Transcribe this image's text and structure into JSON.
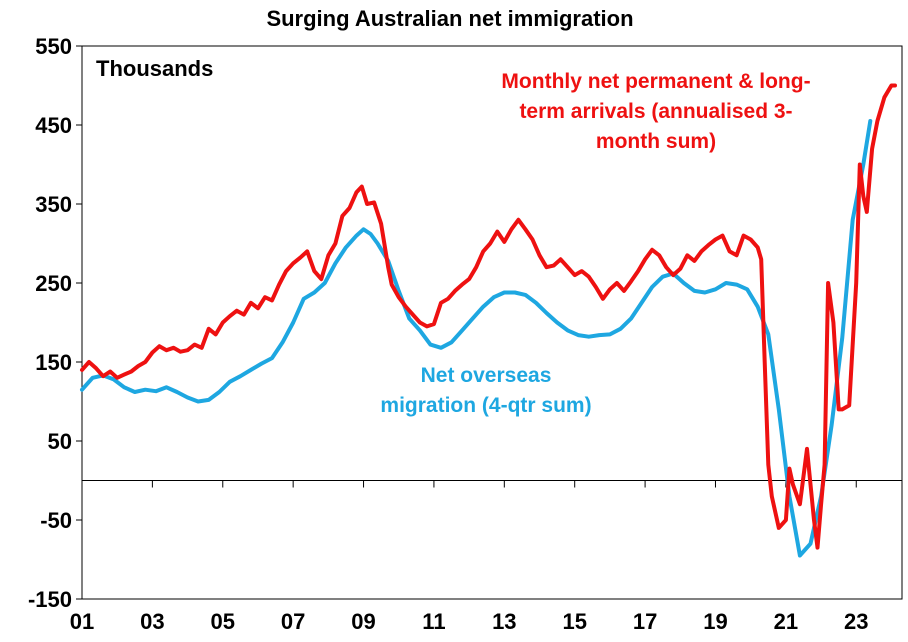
{
  "chart_data": {
    "type": "line",
    "title": "Surging Australian net immigration",
    "unit_label": "Thousands",
    "xlim": [
      2001,
      2024.3
    ],
    "ylim": [
      -150,
      550
    ],
    "x_ticks": [
      {
        "x": 2001,
        "label": "01"
      },
      {
        "x": 2003,
        "label": "03"
      },
      {
        "x": 2005,
        "label": "05"
      },
      {
        "x": 2007,
        "label": "07"
      },
      {
        "x": 2009,
        "label": "09"
      },
      {
        "x": 2011,
        "label": "11"
      },
      {
        "x": 2013,
        "label": "13"
      },
      {
        "x": 2015,
        "label": "15"
      },
      {
        "x": 2017,
        "label": "17"
      },
      {
        "x": 2019,
        "label": "19"
      },
      {
        "x": 2021,
        "label": "21"
      },
      {
        "x": 2023,
        "label": "23"
      }
    ],
    "y_ticks": [
      550,
      450,
      350,
      250,
      150,
      50,
      -50,
      -150
    ],
    "grid": false,
    "colors": {
      "red_series": "#ee1111",
      "blue_series": "#1ea7e1",
      "axis": "#000000"
    },
    "series": [
      {
        "name": "Monthly net permanent & long-term arrivals (annualised 3-month sum)",
        "label_lines": [
          "Monthly net permanent & long-",
          "term arrivals (annualised 3-",
          "month sum)"
        ],
        "color": "#ee1111",
        "x": [
          2001.0,
          2001.2,
          2001.4,
          2001.6,
          2001.8,
          2002.0,
          2002.2,
          2002.4,
          2002.6,
          2002.8,
          2003.0,
          2003.2,
          2003.4,
          2003.6,
          2003.8,
          2004.0,
          2004.2,
          2004.4,
          2004.6,
          2004.8,
          2005.0,
          2005.2,
          2005.4,
          2005.6,
          2005.8,
          2006.0,
          2006.2,
          2006.4,
          2006.6,
          2006.8,
          2007.0,
          2007.2,
          2007.4,
          2007.6,
          2007.8,
          2008.0,
          2008.2,
          2008.4,
          2008.6,
          2008.8,
          2008.95,
          2009.1,
          2009.3,
          2009.5,
          2009.7,
          2009.8,
          2009.9,
          2010.0,
          2010.2,
          2010.4,
          2010.6,
          2010.8,
          2011.0,
          2011.2,
          2011.4,
          2011.6,
          2011.8,
          2012.0,
          2012.2,
          2012.4,
          2012.6,
          2012.8,
          2013.0,
          2013.2,
          2013.4,
          2013.6,
          2013.8,
          2014.0,
          2014.2,
          2014.4,
          2014.6,
          2014.8,
          2015.0,
          2015.2,
          2015.4,
          2015.6,
          2015.8,
          2016.0,
          2016.2,
          2016.4,
          2016.6,
          2016.8,
          2017.0,
          2017.2,
          2017.4,
          2017.6,
          2017.8,
          2018.0,
          2018.2,
          2018.4,
          2018.6,
          2018.8,
          2019.0,
          2019.2,
          2019.4,
          2019.6,
          2019.8,
          2020.0,
          2020.2,
          2020.3,
          2020.4,
          2020.5,
          2020.6,
          2020.8,
          2021.0,
          2021.1,
          2021.2,
          2021.4,
          2021.6,
          2021.8,
          2021.9,
          2022.0,
          2022.1,
          2022.2,
          2022.35,
          2022.5,
          2022.6,
          2022.8,
          2023.0,
          2023.1,
          2023.2,
          2023.3,
          2023.45,
          2023.6,
          2023.8,
          2024.0,
          2024.1
        ],
        "y": [
          140,
          150,
          142,
          132,
          138,
          130,
          134,
          138,
          145,
          150,
          162,
          170,
          165,
          168,
          163,
          165,
          172,
          168,
          192,
          185,
          200,
          208,
          215,
          210,
          225,
          218,
          232,
          228,
          248,
          265,
          275,
          282,
          290,
          265,
          255,
          285,
          300,
          335,
          345,
          365,
          372,
          350,
          352,
          325,
          270,
          248,
          240,
          232,
          220,
          210,
          200,
          195,
          198,
          225,
          230,
          240,
          248,
          255,
          270,
          290,
          300,
          315,
          302,
          318,
          330,
          318,
          305,
          285,
          270,
          272,
          280,
          270,
          260,
          265,
          258,
          245,
          230,
          242,
          250,
          240,
          252,
          265,
          280,
          292,
          285,
          270,
          260,
          268,
          285,
          278,
          290,
          298,
          305,
          310,
          290,
          285,
          310,
          305,
          295,
          280,
          150,
          20,
          -20,
          -60,
          -50,
          15,
          -5,
          -30,
          40,
          -50,
          -85,
          -30,
          20,
          250,
          200,
          90,
          90,
          95,
          250,
          400,
          360,
          340,
          420,
          455,
          485,
          500,
          500
        ]
      },
      {
        "name": "Net overseas migration (4-qtr sum)",
        "label_lines": [
          "Net overseas",
          "migration (4-qtr sum)"
        ],
        "color": "#1ea7e1",
        "x": [
          2001.0,
          2001.3,
          2001.6,
          2001.9,
          2002.2,
          2002.5,
          2002.8,
          2003.1,
          2003.4,
          2003.7,
          2004.0,
          2004.3,
          2004.6,
          2004.9,
          2005.2,
          2005.5,
          2005.8,
          2006.1,
          2006.4,
          2006.7,
          2007.0,
          2007.3,
          2007.6,
          2007.9,
          2008.2,
          2008.5,
          2008.8,
          2009.0,
          2009.2,
          2009.4,
          2009.7,
          2010.0,
          2010.3,
          2010.6,
          2010.9,
          2011.2,
          2011.5,
          2011.8,
          2012.1,
          2012.4,
          2012.7,
          2013.0,
          2013.3,
          2013.6,
          2013.9,
          2014.2,
          2014.5,
          2014.8,
          2015.1,
          2015.4,
          2015.7,
          2016.0,
          2016.3,
          2016.6,
          2016.9,
          2017.2,
          2017.5,
          2017.8,
          2018.1,
          2018.4,
          2018.7,
          2019.0,
          2019.3,
          2019.6,
          2019.9,
          2020.2,
          2020.5,
          2020.8,
          2021.1,
          2021.4,
          2021.7,
          2022.0,
          2022.3,
          2022.6,
          2022.9,
          2023.2,
          2023.4
        ],
        "y": [
          115,
          130,
          133,
          128,
          118,
          112,
          115,
          113,
          118,
          112,
          105,
          100,
          102,
          112,
          125,
          132,
          140,
          148,
          155,
          175,
          200,
          230,
          238,
          250,
          275,
          295,
          310,
          318,
          312,
          300,
          278,
          240,
          205,
          190,
          172,
          168,
          175,
          190,
          205,
          220,
          232,
          238,
          238,
          235,
          225,
          212,
          200,
          190,
          184,
          182,
          184,
          185,
          192,
          205,
          225,
          245,
          258,
          262,
          250,
          240,
          238,
          242,
          250,
          248,
          242,
          220,
          185,
          90,
          -20,
          -95,
          -80,
          -20,
          70,
          180,
          330,
          400,
          455
        ]
      }
    ]
  }
}
